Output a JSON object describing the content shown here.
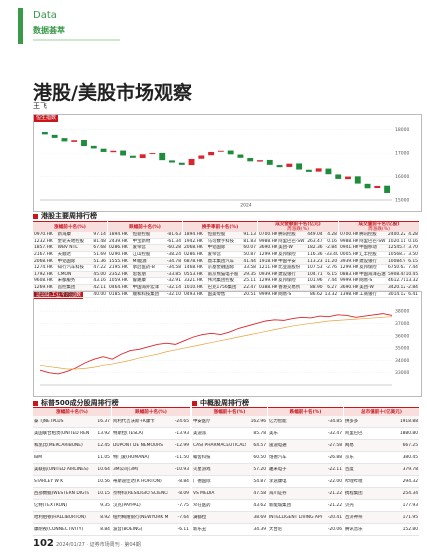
{
  "header": {
    "section": "Data",
    "subtitle": "数据荟萃",
    "title": "港股/美股市场观察",
    "author": "王飞"
  },
  "hsi_chart": {
    "type": "candlestick",
    "title": "恒生指数",
    "x_label": "2024",
    "opens": [
      17900,
      17780,
      17640,
      17480,
      17560,
      17310,
      17190,
      17040,
      17110,
      16890,
      16790,
      16960,
      17010,
      16690,
      16590,
      16490,
      16760,
      16910,
      17060,
      17110,
      16940,
      16790,
      16640,
      16710,
      16490,
      16410,
      16560,
      16290,
      16210,
      16340,
      16090,
      15890,
      16010,
      15690,
      15510,
      15610
    ],
    "closes": [
      17800,
      17650,
      17500,
      17550,
      17300,
      17200,
      17050,
      17100,
      16900,
      16800,
      16950,
      17000,
      16700,
      16600,
      16500,
      16750,
      16900,
      17050,
      17100,
      16950,
      16800,
      16650,
      16700,
      16500,
      16400,
      16550,
      16300,
      16200,
      16350,
      16100,
      15900,
      16000,
      15700,
      15500,
      15600,
      15300
    ],
    "ylim": [
      15000,
      18200
    ],
    "yticks": [
      15000,
      16000,
      17000,
      18000
    ],
    "up_color": "#d9262c",
    "down_color": "#1e8c3c"
  },
  "hk_table": {
    "title": "港股主要周排行榜",
    "groups": [
      {
        "header": "涨幅前十名(%)",
        "rows": [
          [
            "0970.HK",
            "新海康",
            "97.14"
          ],
          [
            "1232.HK",
            "金轮天地控股",
            "81.48"
          ],
          [
            "1857.HK",
            "WBV NTL",
            "67.68"
          ],
          [
            "2167.HK",
            "天顺达",
            "51.69"
          ],
          [
            "2068.HK",
            "中铝国际",
            "51.36"
          ],
          [
            "1274.HK",
            "知行汽车科技",
            "47.22"
          ],
          [
            "1792.HK",
            "CMON",
            "45.00"
          ],
          [
            "9608.HK",
            "宋都服务",
            "43.16"
          ],
          [
            "1269.HK",
            "首控集团",
            "42.11"
          ],
          [
            "0326.HK",
            "东港国际",
            "40.00"
          ]
        ]
      },
      {
        "header": "跌幅前十名(%)",
        "rows": [
          [
            "1894.HK",
            "恒益控股",
            "-81.63"
          ],
          [
            "2439.HK",
            "中宝新材",
            "-61.34"
          ],
          [
            "0286.HK",
            "爱帝宫",
            "-60.28"
          ],
          [
            "0290.HK",
            "江山控股",
            "-38.24"
          ],
          [
            "1555.HK",
            "MI能源",
            "-34.78"
          ],
          [
            "2195.HK",
            "承启医药-B",
            "-34.58"
          ],
          [
            "2352.HK",
            "思客朋",
            "-33.85"
          ],
          [
            "1059.HK",
            "鲁路康",
            "-32.91"
          ],
          [
            "0464.HK",
            "中国海外宏洋",
            "-32.14"
          ],
          [
            "0185.HK",
            "顺和科技集团",
            "-32.10"
          ]
        ]
      },
      {
        "header": "换手率前十名(%)",
        "rows": [
          [
            "1894.HK",
            "恒益控股",
            "91.13"
          ],
          [
            "1942.HK",
            "马可数字科技",
            "81.83"
          ],
          [
            "2068.HK",
            "中铝国际",
            "60.07"
          ],
          [
            "0286.HK",
            "爱帝宫",
            "50.87"
          ],
          [
            "6878.HK",
            "鼎丰集团汽车",
            "41.44"
          ],
          [
            "1468.HK",
            "京基金融国际",
            "33.58"
          ],
          [
            "0553.HK",
            "南京熊猫电子股份",
            "29.35"
          ],
          [
            "3321.HK",
            "伟鸿集团控股",
            "25.11"
          ],
          [
            "1010.HK",
            "巴克1756集团",
            "22.47"
          ],
          [
            "0493.HK",
            "国美零售",
            "20.51"
          ]
        ]
      },
      {
        "header": "成交金额前十名(亿元)",
        "sub_header": "周涨跌(%)",
        "rows": [
          [
            "0700.HK",
            "腾讯控股",
            "449.04",
            "4.28"
          ],
          [
            "9988.HK",
            "阿里巴巴-SW",
            "263.47",
            "0.16"
          ],
          [
            "3690.HK",
            "美团-W",
            "182.36",
            "-2.84"
          ],
          [
            "1299.HK",
            "友邦保险",
            "116.36",
            "-33.40"
          ],
          [
            "1918.HK",
            "中国平安",
            "113.23",
            "11.20"
          ],
          [
            "1211.HK",
            "比亚迪股份",
            "107.53",
            "-2.76"
          ],
          [
            "0939.HK",
            "建设银行",
            "104.71",
            "6.15"
          ],
          [
            "1299.HK",
            "友邦保险",
            "101.96",
            "7.44"
          ],
          [
            "0388.HK",
            "香港交易所",
            "88.90",
            "6.27"
          ],
          [
            "9999.HK",
            "网易-S",
            "86.62",
            "13.32"
          ]
        ]
      },
      {
        "header": "成交量前十名(亿股)",
        "sub_header": "周涨跌(%)",
        "rows": [
          [
            "0700.HK",
            "腾讯控股",
            "2400.22",
            "4.28"
          ],
          [
            "9988.HK",
            "阿里巴巴-SW",
            "1020.11",
            "0.16"
          ],
          [
            "0941.HK",
            "中国移动",
            "12545.46",
            "3.70"
          ],
          [
            "0005.HK",
            "汇丰控股",
            "10568.39",
            "3.50"
          ],
          [
            "3939.HK",
            "建设银行",
            "10084.96",
            "6.15"
          ],
          [
            "1299.HK",
            "友邦保险",
            "6750.63",
            "7.44"
          ],
          [
            "0883.HK",
            "中国海洋石油",
            "5908.44",
            "10.45"
          ],
          [
            "9999.HK",
            "网易-S",
            "4612.71",
            "13.32"
          ],
          [
            "3690.HK",
            "美团-W",
            "3420.12",
            "-2.84"
          ],
          [
            "1398.HK",
            "工商银行",
            "3014.12",
            "6.41"
          ]
        ]
      }
    ]
  },
  "dji_chart": {
    "type": "line",
    "title": "道琼斯工业平均指数",
    "series": [
      {
        "color": "#d9262c",
        "values": [
          33200,
          33000,
          32900,
          33100,
          33400,
          33800,
          34100,
          34300,
          34100,
          34500,
          34800,
          34900,
          35100,
          35300,
          35400,
          35300,
          35600,
          35900,
          36100,
          36200,
          36100,
          36300,
          36600,
          36800,
          37000,
          37200,
          37300,
          37250,
          37400,
          37500,
          37450,
          37600,
          37550,
          37700,
          37650,
          37500,
          37600,
          37700,
          37800,
          37650
        ]
      },
      {
        "color": "#e8a33a",
        "values": [
          33600,
          33500,
          33400,
          33300,
          33300,
          33350,
          33450,
          33600,
          33700,
          33850,
          34000,
          34200,
          34350,
          34500,
          34700,
          34850,
          35000,
          35150,
          35300,
          35450,
          35600,
          35750,
          35900,
          36050,
          36200,
          36350,
          36500,
          36650,
          36800,
          36900,
          37000,
          37100,
          37200,
          37250,
          37300,
          37350,
          37400,
          37450,
          37500,
          37550
        ]
      }
    ],
    "ylim": [
      32000,
      38500
    ],
    "yticks": [
      33000,
      34000,
      35000,
      36000,
      37000,
      38000
    ]
  },
  "sp_table": {
    "title": "标普500成分股周排行榜",
    "groups": [
      {
        "header": "涨幅前十名(%)",
        "rows": [
          [
            "泰 TJNETPLUS",
            "16.37"
          ],
          [
            "美国联合租赁(UNITED RENTALS)",
            "13.92"
          ],
          [
            "和凯比(MERCARIBUNE)",
            "12.45"
          ],
          [
            "IBM",
            "11.05"
          ],
          [
            "美联航(UNITED AIRLINES)",
            "10.64"
          ],
          [
            "STARLEY W K",
            "10.56"
          ],
          [
            "西部数据(WESTERN DIGITAL)",
            "10.15"
          ],
          [
            "亿特(TEXTRON)",
            "9.35"
          ],
          [
            "哈利伯顿(HALLIBURTON)",
            "8.92"
          ],
          [
            "康耐视(CONNECTIVITY)",
            "8.84"
          ]
        ]
      },
      {
        "header": "跌幅前十名(%)",
        "rows": [
          [
            "阿利代吉沃斯+K康卡",
            "-24.65"
          ],
          [
            "特斯拉(TESLA)",
            "-13.93"
          ],
          [
            "DUPONT DE NEMOURS",
            "-12.99"
          ],
          [
            "特门爱(HUMANA)",
            "-11.50"
          ],
          [
            "3M公司(3M)",
            "-10.93"
          ],
          [
            "蒂斯迪佳达(R HORTON)",
            "-8.84"
          ],
          [
            "奈特科(RESILIGIO SCIENCE)",
            "-8.09"
          ],
          [
            "汉克(PAYPAL)",
            "-7.75"
          ],
          [
            "纽约梅隆银行(NEWYORK MELLON)",
            "-7.64"
          ],
          [
            "波音(BOEING)",
            "-6.11"
          ]
        ]
      }
    ]
  },
  "cn_table": {
    "title": "中概股周排行榜",
    "groups": [
      {
        "header": "涨幅前十名(%)",
        "rows": [
          [
            "中安医疗",
            "162.96"
          ],
          [
            "美迪派",
            "85.78"
          ],
          [
            "CASI PHARMACEUTICALS",
            "64.57"
          ],
          [
            "翰舍科技",
            "60.50"
          ],
          [
            "火星游戏",
            "57.20"
          ],
          [
            "广德国际",
            "54.87"
          ],
          [
            "VS MEDIA",
            "47.58"
          ],
          [
            "众在医药",
            "43.62"
          ],
          [
            "满都拉",
            "38.69"
          ],
          [
            "新乐丑",
            "34.39"
          ]
        ]
      },
      {
        "header": "跌幅前十名(%)",
        "rows": [
          [
            "亿力智能",
            "-34.85"
          ],
          [
            "美乐",
            "-32.47"
          ],
          [
            "雷迪电通",
            "-27.58"
          ],
          [
            "饱德汽车",
            "-26.88"
          ],
          [
            "趣米电子",
            "-22.11"
          ],
          [
            "李途康电",
            "-22.00"
          ],
          [
            "海川证券",
            "-21.22"
          ],
          [
            "新能城集团",
            "-21.22"
          ],
          [
            "INTELLIGENT LIVING APPLICATION",
            "-20.41"
          ],
          [
            "大台尼",
            "-20.06"
          ]
        ]
      },
      {
        "header": "总市值前十(亿美元)",
        "rows": [
          [
            "拼多多",
            "1918.88"
          ],
          [
            "阿里巴巴",
            "1880.80"
          ],
          [
            "网易",
            "667.25"
          ],
          [
            "京东",
            "380.45"
          ],
          [
            "百度",
            "379.78"
          ],
          [
            "哔哩哔哩",
            "294.32"
          ],
          [
            "携程集团",
            "254.34"
          ],
          [
            "贝壳",
            "177.93"
          ],
          [
            "百济神州",
            "171.95"
          ],
          [
            "腾讯音乐",
            "152.80"
          ]
        ]
      }
    ]
  },
  "footer": {
    "page": "102",
    "issue": "2024/01/27 · 证券市场周刊 · 第04期"
  }
}
